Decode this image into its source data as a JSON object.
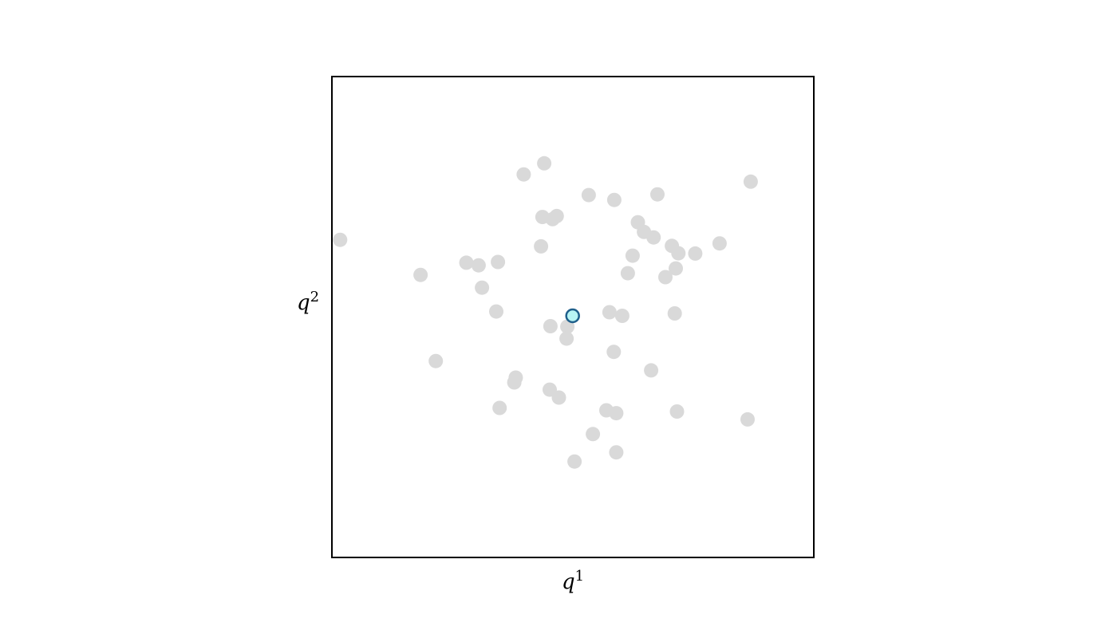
{
  "chart_data": {
    "type": "scatter",
    "title": "",
    "xlabel": "q",
    "xlabel_superscript": "1",
    "ylabel": "q",
    "ylabel_superscript": "2",
    "xlim": [
      -1,
      1
    ],
    "ylim": [
      -1,
      1
    ],
    "grid": false,
    "ticks": false,
    "series": [
      {
        "role": "background",
        "color": "#d9d9d9",
        "points": [
          [
            -0.966,
            0.321
          ],
          [
            -0.204,
            0.593
          ],
          [
            -0.119,
            0.639
          ],
          [
            0.066,
            0.507
          ],
          [
            0.172,
            0.487
          ],
          [
            0.351,
            0.51
          ],
          [
            0.738,
            0.563
          ],
          [
            -0.126,
            0.416
          ],
          [
            -0.084,
            0.407
          ],
          [
            -0.067,
            0.42
          ],
          [
            0.27,
            0.394
          ],
          [
            0.295,
            0.354
          ],
          [
            0.335,
            0.331
          ],
          [
            0.411,
            0.296
          ],
          [
            0.438,
            0.265
          ],
          [
            0.508,
            0.264
          ],
          [
            0.609,
            0.306
          ],
          [
            -0.132,
            0.294
          ],
          [
            0.248,
            0.255
          ],
          [
            -0.442,
            0.226
          ],
          [
            -0.391,
            0.215
          ],
          [
            -0.311,
            0.229
          ],
          [
            -0.632,
            0.175
          ],
          [
            0.427,
            0.202
          ],
          [
            0.228,
            0.182
          ],
          [
            0.384,
            0.166
          ],
          [
            -0.377,
            0.122
          ],
          [
            -0.318,
            0.023
          ],
          [
            0.152,
            0.02
          ],
          [
            0.205,
            0.005
          ],
          [
            0.423,
            0.015
          ],
          [
            -0.093,
            -0.038
          ],
          [
            -0.023,
            -0.04
          ],
          [
            -0.026,
            -0.09
          ],
          [
            0.17,
            -0.145
          ],
          [
            -0.569,
            -0.183
          ],
          [
            0.325,
            -0.222
          ],
          [
            -0.237,
            -0.252
          ],
          [
            -0.243,
            -0.272
          ],
          [
            -0.096,
            -0.302
          ],
          [
            -0.058,
            -0.335
          ],
          [
            -0.304,
            -0.378
          ],
          [
            0.139,
            -0.388
          ],
          [
            0.18,
            -0.4
          ],
          [
            0.432,
            -0.393
          ],
          [
            0.725,
            -0.426
          ],
          [
            0.083,
            -0.487
          ],
          [
            0.18,
            -0.563
          ],
          [
            0.007,
            -0.601
          ]
        ]
      },
      {
        "role": "highlighted",
        "color": "#b8f4f4",
        "edge_color": "#1f5f8b",
        "points": [
          [
            -0.001,
            0.005
          ]
        ]
      }
    ]
  }
}
